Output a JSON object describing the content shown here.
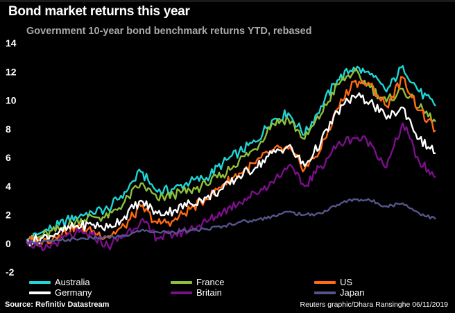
{
  "header": {
    "title": "Bond market returns this year",
    "subtitle": "Government 10-year bond benchmark returns YTD, rebased"
  },
  "footer": {
    "source": "Source: Refinitiv Datastream",
    "credit": "Reuters graphic/Dhara Ransinghe 06/11/2019"
  },
  "chart_data": {
    "type": "line",
    "title": "Bond market returns this year",
    "subtitle": "Government 10-year bond benchmark returns YTD, rebased",
    "xlabel": "",
    "ylabel": "",
    "ylim": [
      -2,
      14
    ],
    "yticks": [
      14,
      12,
      10,
      8,
      6,
      4,
      2,
      0,
      -2
    ],
    "grid": false,
    "legend_position": "bottom",
    "x": [
      0,
      4,
      8,
      12,
      16,
      20,
      24,
      28,
      32,
      36,
      40,
      44,
      48,
      52,
      56,
      60,
      64,
      68,
      72,
      76,
      80,
      84,
      88,
      92,
      96,
      100
    ],
    "series": [
      {
        "name": "Australia",
        "color": "#1fd6d6",
        "values": [
          0.2,
          0.8,
          1.3,
          1.9,
          2.2,
          2.4,
          3.6,
          5.0,
          3.6,
          3.8,
          4.3,
          4.6,
          5.6,
          6.4,
          7.1,
          8.6,
          9.1,
          7.6,
          9.6,
          11.4,
          12.3,
          11.8,
          10.6,
          12.4,
          10.6,
          9.6
        ]
      },
      {
        "name": "France",
        "color": "#8fbf3a",
        "values": [
          0.1,
          0.5,
          1.0,
          1.5,
          1.9,
          1.8,
          2.9,
          4.2,
          3.1,
          3.4,
          3.7,
          4.1,
          4.8,
          5.8,
          6.6,
          8.4,
          8.7,
          7.3,
          9.0,
          11.1,
          12.0,
          10.9,
          9.9,
          10.8,
          9.5,
          8.5
        ]
      },
      {
        "name": "US",
        "color": "#ff6a13",
        "values": [
          0.2,
          0.1,
          0.6,
          1.2,
          0.8,
          0.5,
          1.2,
          2.6,
          1.4,
          1.6,
          2.4,
          3.1,
          4.1,
          4.9,
          5.6,
          6.5,
          6.6,
          5.2,
          6.6,
          9.4,
          11.3,
          11.1,
          9.6,
          11.6,
          9.3,
          7.9
        ]
      },
      {
        "name": "Germany",
        "color": "#ffffff",
        "values": [
          0.1,
          0.4,
          0.8,
          1.2,
          1.3,
          1.1,
          1.9,
          3.0,
          2.1,
          2.3,
          2.8,
          3.2,
          3.8,
          4.7,
          5.3,
          6.3,
          6.8,
          5.4,
          7.1,
          9.2,
          10.3,
          9.9,
          8.7,
          9.5,
          7.3,
          6.3
        ]
      },
      {
        "name": "Britain",
        "color": "#7b0f8a",
        "values": [
          0.2,
          -0.5,
          0.2,
          0.7,
          0.6,
          -0.2,
          0.6,
          1.6,
          0.4,
          0.6,
          1.0,
          1.5,
          2.2,
          2.9,
          3.5,
          4.3,
          5.4,
          4.0,
          5.4,
          6.9,
          7.4,
          7.1,
          5.3,
          8.4,
          5.7,
          4.6
        ]
      },
      {
        "name": "Japan",
        "color": "#55558c",
        "values": [
          0.1,
          0.1,
          0.2,
          0.3,
          0.4,
          0.4,
          0.5,
          0.9,
          0.8,
          0.8,
          0.9,
          1.0,
          1.2,
          1.5,
          1.6,
          1.9,
          2.2,
          2.0,
          2.1,
          2.7,
          3.1,
          3.0,
          2.6,
          2.8,
          2.1,
          1.7
        ]
      }
    ]
  }
}
